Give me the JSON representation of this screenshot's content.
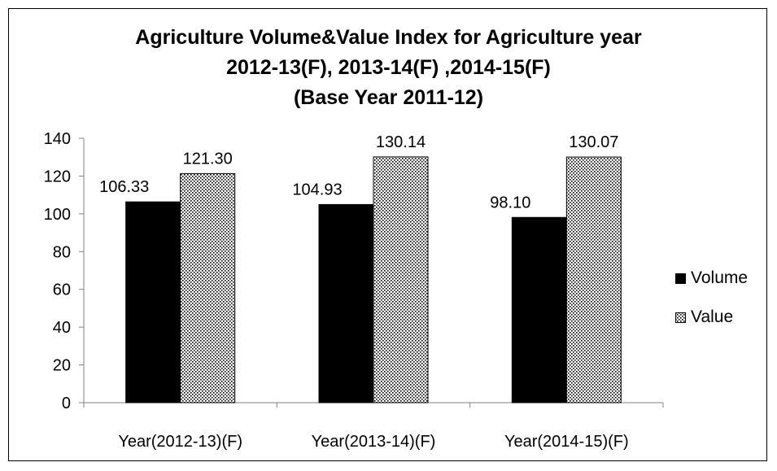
{
  "chart_data": {
    "type": "bar",
    "title": [
      "Agriculture Volume&Value Index for Agriculture year",
      "2012-13(F), 2013-14(F) ,2014-15(F)",
      "(Base Year 2011-12)"
    ],
    "categories": [
      "Year(2012-13)(F)",
      "Year(2013-14)(F)",
      "Year(2014-15)(F)"
    ],
    "series": [
      {
        "name": "Volume",
        "values": [
          106.33,
          104.93,
          98.1
        ],
        "labels": [
          "106.33",
          "104.93",
          "98.10"
        ],
        "color": "#000000"
      },
      {
        "name": "Value",
        "values": [
          121.3,
          130.14,
          130.07
        ],
        "labels": [
          "121.30",
          "130.14",
          "130.07"
        ],
        "color": "#ffffff"
      }
    ],
    "ylim": [
      0,
      140
    ],
    "yticks": [
      "0",
      "20",
      "40",
      "60",
      "80",
      "100",
      "120",
      "140"
    ],
    "xlabel": "",
    "ylabel": "",
    "grid": false,
    "legend_position": "right"
  }
}
